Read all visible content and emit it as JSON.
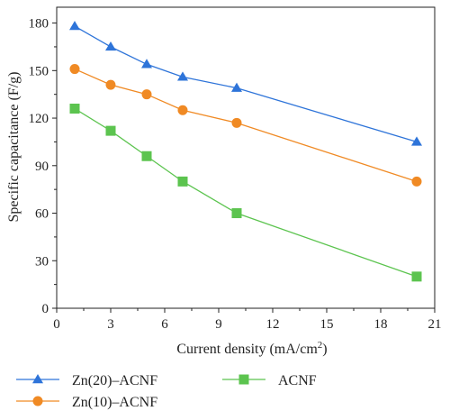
{
  "chart_data": {
    "type": "line",
    "title": "",
    "xlabel_main": "Current density (mA/cm",
    "xlabel_sup": "2",
    "xlabel_tail": ")",
    "ylabel": "Specific capacitance (F/g)",
    "xlim": [
      0,
      21
    ],
    "ylim": [
      0,
      190
    ],
    "x_ticks": [
      "0",
      "3",
      "6",
      "9",
      "12",
      "15",
      "18",
      "21"
    ],
    "y_ticks": [
      "0",
      "30",
      "60",
      "90",
      "120",
      "150",
      "180"
    ],
    "grid": false,
    "legend_position": "bottom",
    "x": [
      1,
      3,
      5,
      7,
      10,
      20
    ],
    "series": [
      {
        "name": "Zn(20)–ACNF",
        "marker": "triangle",
        "color": "#2e74d9",
        "values": [
          178,
          165,
          154,
          146,
          139,
          105
        ]
      },
      {
        "name": "Zn(10)–ACNF",
        "marker": "circle",
        "color": "#f08a24",
        "values": [
          151,
          141,
          135,
          125,
          117,
          80
        ]
      },
      {
        "name": "ACNF",
        "marker": "square",
        "color": "#5cc44f",
        "values": [
          126,
          112,
          96,
          80,
          60,
          20
        ]
      }
    ]
  }
}
